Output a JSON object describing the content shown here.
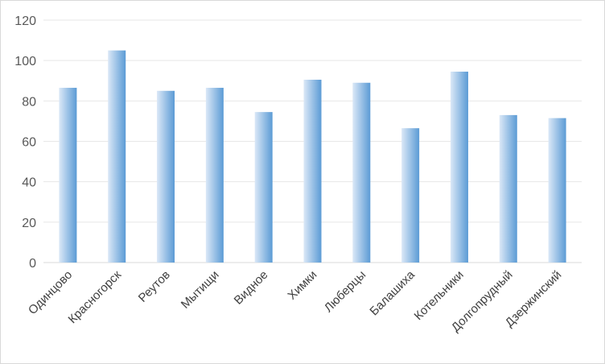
{
  "chart_data": {
    "type": "bar",
    "categories": [
      "Одинцово",
      "Красногорск",
      "Реутов",
      "Мытищи",
      "Видное",
      "Химки",
      "Люберцы",
      "Балашиха",
      "Котельники",
      "Долгопрудный",
      "Дзержинский"
    ],
    "values": [
      86.5,
      105,
      85,
      86.5,
      74.5,
      90.5,
      89,
      66.5,
      94.5,
      73,
      71.5
    ],
    "ylim": [
      0,
      120
    ],
    "yticks": [
      "0",
      "20",
      "40",
      "60",
      "80",
      "100",
      "120"
    ],
    "grid": true,
    "legend": "none",
    "colors": {
      "bar_light": "#dbe8f7",
      "bar_dark": "#5b9bd5",
      "grid": "#e7e7e7"
    }
  }
}
